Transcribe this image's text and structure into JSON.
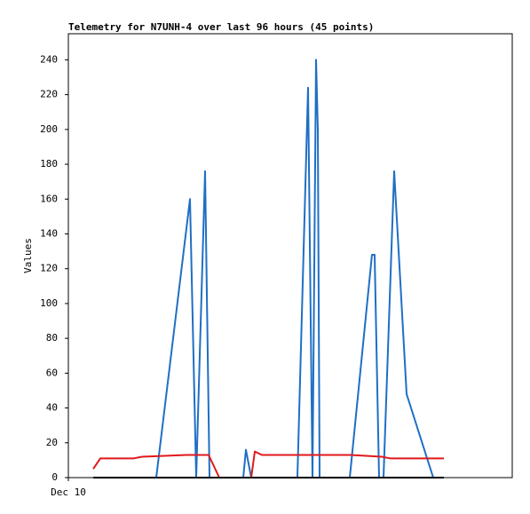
{
  "chart_data": {
    "type": "line",
    "title": "Telemetry for N7UNH-4 over last 96 hours (45 points)",
    "y_label": "Values",
    "xlim": [
      0,
      100
    ],
    "xticks": [
      {
        "value": 0,
        "label": "Dec 10"
      }
    ],
    "ylim": [
      0,
      255
    ],
    "yticks": [
      0,
      20,
      40,
      60,
      80,
      100,
      120,
      140,
      160,
      180,
      200,
      220,
      240
    ],
    "grid": false,
    "series": [
      {
        "color": "#1f6fc4",
        "x": [
          19.8,
          27.4,
          28.8,
          30.8,
          31.8,
          39.4,
          40,
          41.2,
          51.6,
          54,
          55,
          55.8,
          56.2,
          56.6,
          63.4,
          68.4,
          69,
          70,
          71,
          73.4,
          76.2,
          82.2
        ],
        "values": [
          0,
          160,
          0,
          176,
          0,
          0,
          16,
          0,
          0,
          224,
          0,
          240,
          200,
          0,
          0,
          128,
          128,
          0,
          0,
          176,
          48,
          0
        ]
      },
      {
        "color": "#e0191c",
        "x": [
          5.6,
          7.2,
          14.6,
          16.6,
          26.6,
          31.6,
          34,
          41.2,
          42,
          43.6,
          63.6,
          70.6,
          72.6,
          84.6
        ],
        "values": [
          5,
          11,
          11,
          12,
          13,
          13,
          0,
          0,
          15,
          13,
          13,
          12,
          11,
          11
        ]
      },
      {
        "color": "#000000",
        "x": [
          5.6,
          84.6
        ],
        "values": [
          0,
          0
        ]
      }
    ]
  }
}
